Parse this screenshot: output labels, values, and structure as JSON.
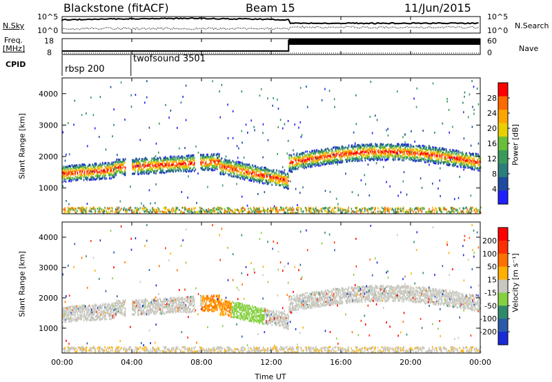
{
  "header": {
    "title": "Blackstone (fitACF)",
    "beam": "Beam 15",
    "date": "11/Jun/2015"
  },
  "left_labels": {
    "nsky": "N.Sky",
    "freq_line1": "Freq.",
    "freq_line2": "[MHz]",
    "cpid": "CPID"
  },
  "right_labels": {
    "nsearch": "N.Search",
    "nave": "Nave"
  },
  "noise_axis": {
    "left_ticks": [
      "10^5",
      "10^0"
    ],
    "right_ticks": [
      "10^5",
      "10^0"
    ]
  },
  "freq_axis": {
    "left_ticks": [
      "18",
      "8"
    ],
    "right_ticks": [
      "60",
      "0"
    ]
  },
  "cpid_segments": [
    {
      "label": "rbsp 200",
      "start_hour": 0.0
    },
    {
      "label": "twofsound 3501",
      "start_hour": 3.95
    }
  ],
  "time_axis": {
    "label": "Time UT",
    "ticks": [
      "00:00",
      "04:00",
      "08:00",
      "12:00",
      "16:00",
      "20:00",
      "00:00"
    ]
  },
  "chart_data": [
    {
      "type": "heatmap",
      "name": "power",
      "xlabel": "Time UT",
      "ylabel": "Slant Range [km]",
      "xlim_hours": [
        0,
        24
      ],
      "ylim_km": [
        180,
        4500
      ],
      "y_ticks": [
        "4000",
        "3000",
        "2000",
        "1000"
      ],
      "colorbar": {
        "label": "Power [dB]",
        "ticks": [
          "28",
          "24",
          "20",
          "16",
          "12",
          "8",
          "4"
        ],
        "colors": [
          "#2020ff",
          "#204a9f",
          "#2d7d7d",
          "#3a9a5a",
          "#6abf3a",
          "#e8d000",
          "#ffa500",
          "#ff6a00",
          "#ff0000"
        ]
      }
    },
    {
      "type": "heatmap",
      "name": "velocity",
      "xlabel": "Time UT",
      "ylabel": "Slant Range [km]",
      "xlim_hours": [
        0,
        24
      ],
      "ylim_km": [
        180,
        4500
      ],
      "y_ticks": [
        "4000",
        "3000",
        "2000",
        "1000"
      ],
      "colorbar": {
        "label": "Velocity [m s⁻¹]",
        "ticks": [
          "200",
          "100",
          "50",
          "15",
          "-15",
          "-50",
          "-100",
          "-200"
        ],
        "colors": [
          "#1a2ad6",
          "#2a5aa8",
          "#2f8a6a",
          "#86d040",
          "#c8c8c0",
          "#ffb000",
          "#ff7000",
          "#ff3000",
          "#ff0000"
        ]
      }
    }
  ]
}
